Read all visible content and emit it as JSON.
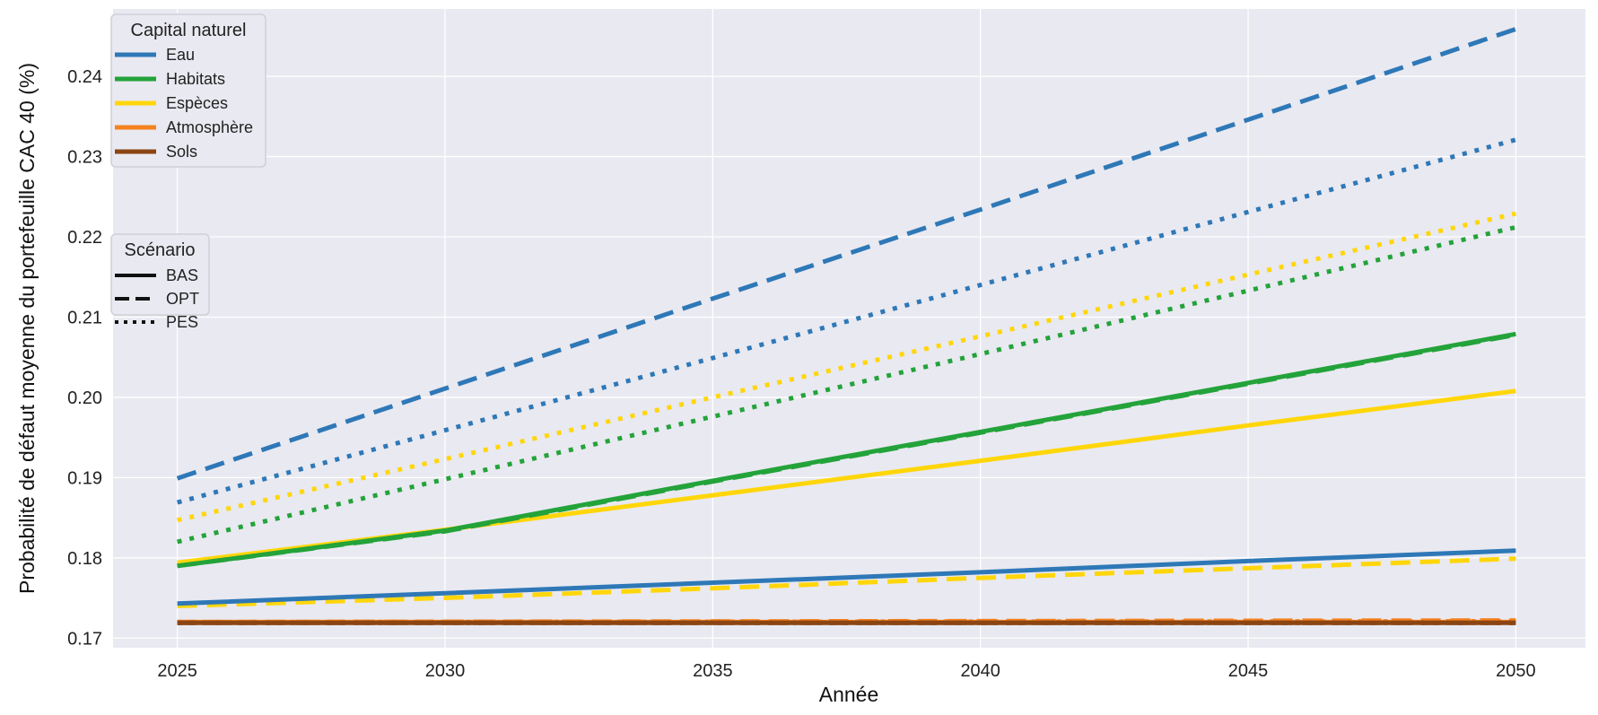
{
  "chart_data": {
    "type": "line",
    "xlabel": "Année",
    "ylabel": "Probabilité de défaut moyenne du portefeuille CAC 40 (%)",
    "xlim": [
      2023.8,
      2051.3
    ],
    "ylim": [
      0.1688,
      0.2484
    ],
    "x_ticks": [
      2025,
      2030,
      2035,
      2040,
      2045,
      2050
    ],
    "y_ticks": [
      0.17,
      0.18,
      0.19,
      0.2,
      0.21,
      0.22,
      0.23,
      0.24
    ],
    "y_tick_labels": [
      "0.17",
      "0.18",
      "0.19",
      "0.20",
      "0.21",
      "0.22",
      "0.23",
      "0.24"
    ],
    "grid": true,
    "background": "#e9e9f1",
    "legends": {
      "capital": {
        "title": "Capital naturel",
        "placement": "top-left",
        "entries": [
          {
            "key": "eau",
            "label": "Eau",
            "color": "#2e78b7"
          },
          {
            "key": "habitats",
            "label": "Habitats",
            "color": "#23a33a"
          },
          {
            "key": "especes",
            "label": "Espèces",
            "color": "#ffd60a"
          },
          {
            "key": "atmosphere",
            "label": "Atmosphère",
            "color": "#f5821f"
          },
          {
            "key": "sols",
            "label": "Sols",
            "color": "#8b4513"
          }
        ]
      },
      "scenario": {
        "title": "Scénario",
        "placement": "center-left",
        "entries": [
          {
            "key": "BAS",
            "label": "BAS",
            "dash": "solid"
          },
          {
            "key": "OPT",
            "label": "OPT",
            "dash": "dashed"
          },
          {
            "key": "PES",
            "label": "PES",
            "dash": "dotted"
          }
        ]
      }
    },
    "series": [
      {
        "capital": "atmosphere",
        "scenario": "OPT",
        "x": [
          2025,
          2050
        ],
        "y": [
          0.172,
          0.1722
        ]
      },
      {
        "capital": "atmosphere",
        "scenario": "PES",
        "x": [
          2025,
          2050
        ],
        "y": [
          0.172,
          0.1721
        ]
      },
      {
        "capital": "atmosphere",
        "scenario": "BAS",
        "x": [
          2025,
          2050
        ],
        "y": [
          0.172,
          0.172
        ]
      },
      {
        "capital": "sols",
        "scenario": "OPT",
        "x": [
          2025,
          2050
        ],
        "y": [
          0.1719,
          0.1719
        ]
      },
      {
        "capital": "sols",
        "scenario": "PES",
        "x": [
          2025,
          2050
        ],
        "y": [
          0.1719,
          0.1719
        ]
      },
      {
        "capital": "sols",
        "scenario": "BAS",
        "x": [
          2025,
          2050
        ],
        "y": [
          0.1719,
          0.1719
        ]
      },
      {
        "capital": "especes",
        "scenario": "OPT",
        "x": [
          2025,
          2030,
          2035,
          2040,
          2045,
          2050
        ],
        "y": [
          0.174,
          0.175,
          0.1762,
          0.1775,
          0.1787,
          0.1799
        ]
      },
      {
        "capital": "eau",
        "scenario": "BAS",
        "x": [
          2025,
          2030,
          2035,
          2040,
          2045,
          2050
        ],
        "y": [
          0.1743,
          0.1756,
          0.1769,
          0.1782,
          0.1796,
          0.1809
        ]
      },
      {
        "capital": "especes",
        "scenario": "BAS",
        "x": [
          2025,
          2030,
          2035,
          2040,
          2045,
          2050
        ],
        "y": [
          0.1794,
          0.1835,
          0.1878,
          0.1921,
          0.1965,
          0.2008
        ]
      },
      {
        "capital": "habitats",
        "scenario": "OPT",
        "x": [
          2025,
          2030,
          2035,
          2040,
          2045,
          2050
        ],
        "y": [
          0.179,
          0.1833,
          0.1895,
          0.1956,
          0.2017,
          0.2078
        ]
      },
      {
        "capital": "habitats",
        "scenario": "BAS",
        "x": [
          2025,
          2030,
          2035,
          2040,
          2045,
          2050
        ],
        "y": [
          0.179,
          0.1834,
          0.1896,
          0.1957,
          0.2018,
          0.2079
        ]
      },
      {
        "capital": "habitats",
        "scenario": "PES",
        "x": [
          2025,
          2030,
          2035,
          2040,
          2045,
          2050
        ],
        "y": [
          0.182,
          0.1898,
          0.1976,
          0.2054,
          0.2133,
          0.2212
        ]
      },
      {
        "capital": "especes",
        "scenario": "PES",
        "x": [
          2025,
          2030,
          2035,
          2040,
          2045,
          2050
        ],
        "y": [
          0.1847,
          0.1923,
          0.2,
          0.2076,
          0.2153,
          0.2229
        ]
      },
      {
        "capital": "eau",
        "scenario": "PES",
        "x": [
          2025,
          2030,
          2035,
          2040,
          2045,
          2050
        ],
        "y": [
          0.1869,
          0.1959,
          0.2049,
          0.214,
          0.2231,
          0.2321
        ]
      },
      {
        "capital": "eau",
        "scenario": "OPT",
        "x": [
          2025,
          2030,
          2035,
          2040,
          2045,
          2050
        ],
        "y": [
          0.1899,
          0.2011,
          0.2123,
          0.2234,
          0.2346,
          0.2459
        ]
      }
    ]
  }
}
